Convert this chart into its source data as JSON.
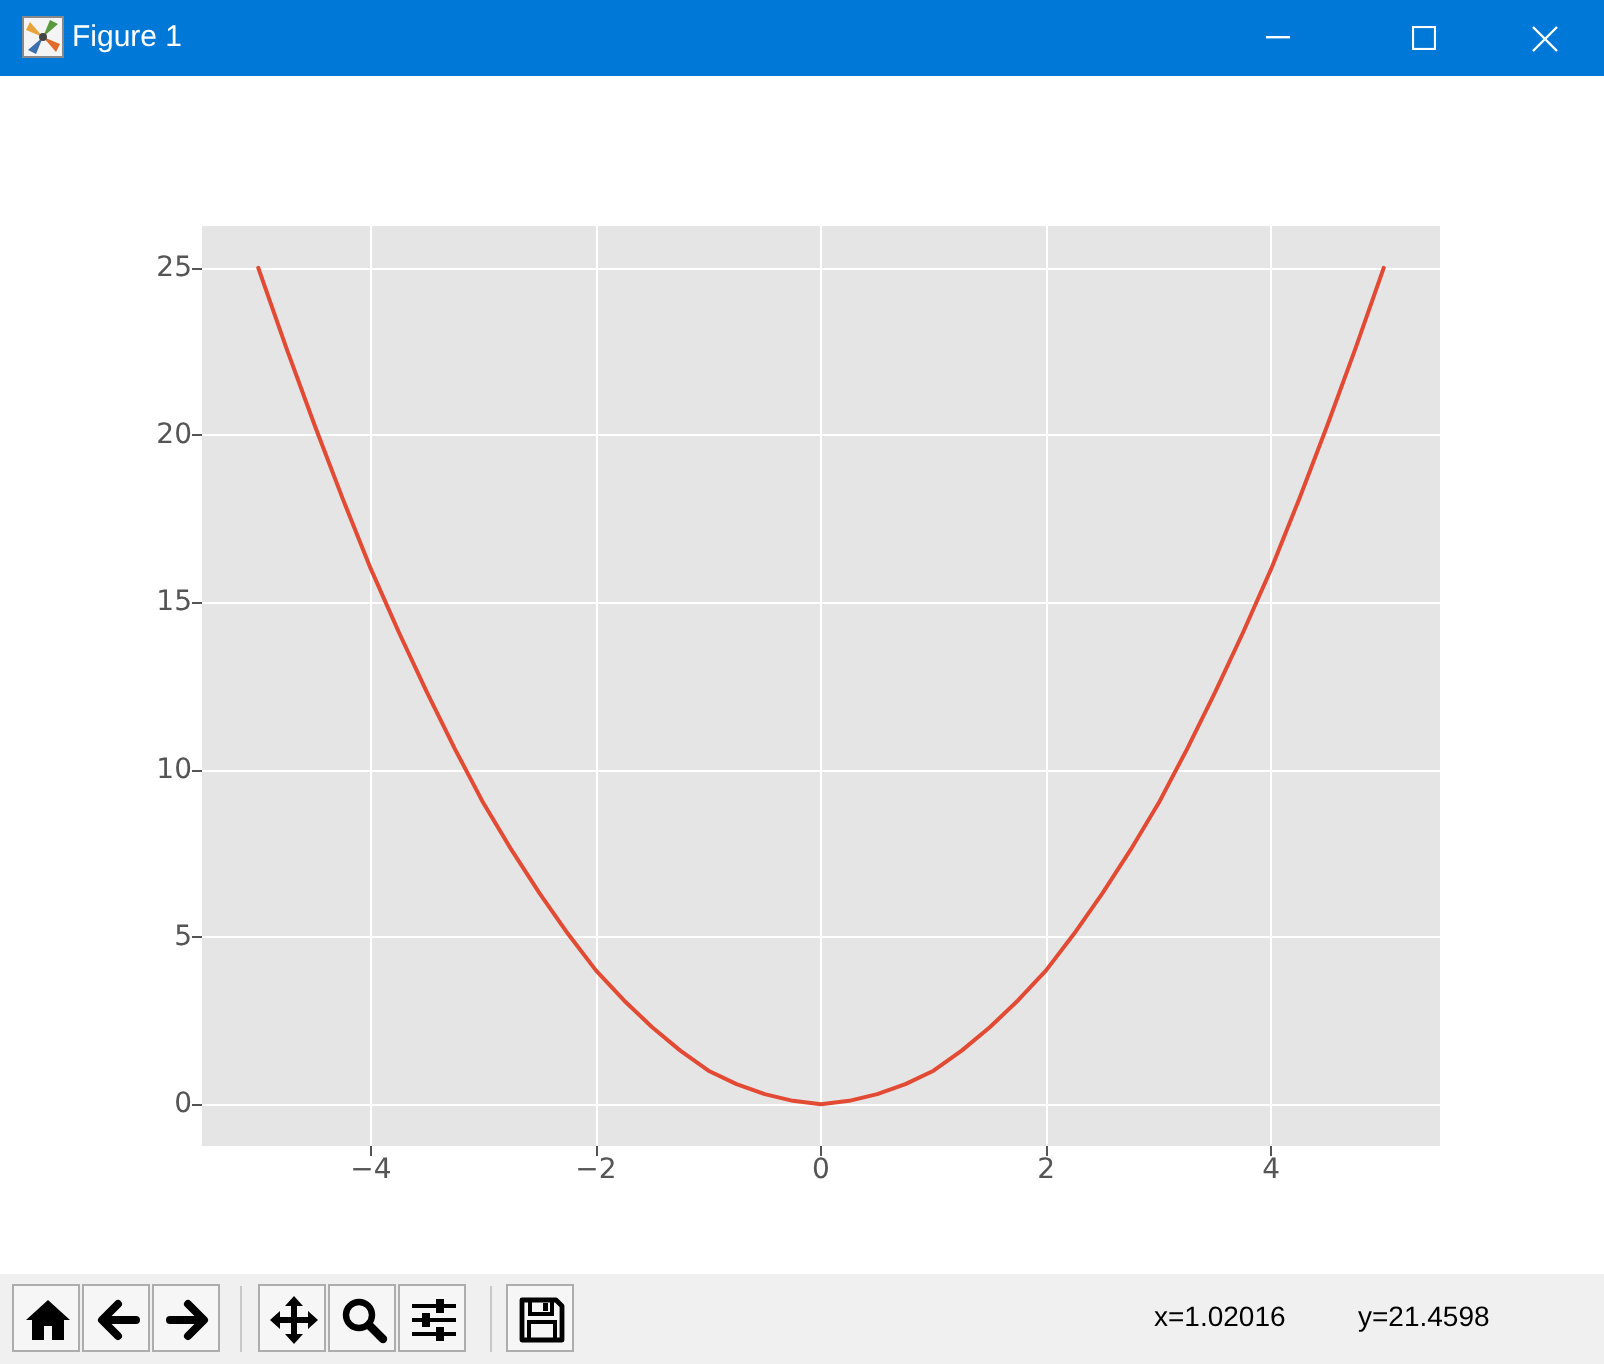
{
  "chart_data": {
    "type": "line",
    "title": "Figure 1",
    "x": [
      -5,
      -4.75,
      -4.5,
      -4.25,
      -4,
      -3.75,
      -3.5,
      -3.25,
      -3,
      -2.75,
      -2.5,
      -2.25,
      -2,
      -1.75,
      -1.5,
      -1.25,
      -1,
      -0.75,
      -0.5,
      -0.25,
      0,
      0.25,
      0.5,
      0.75,
      1,
      1.25,
      1.5,
      1.75,
      2,
      2.25,
      2.5,
      2.75,
      3,
      3.25,
      3.5,
      3.75,
      4,
      4.25,
      4.5,
      4.75,
      5
    ],
    "series": [
      {
        "color": "#e24a33",
        "values": [
          25,
          22.6,
          20.3,
          18.1,
          16,
          14.1,
          12.3,
          10.6,
          9,
          7.6,
          6.3,
          5.1,
          4,
          3.1,
          2.3,
          1.6,
          1,
          0.6,
          0.3,
          0.1,
          0,
          0.1,
          0.3,
          0.6,
          1,
          1.6,
          2.3,
          3.1,
          4,
          5.1,
          6.3,
          7.6,
          9,
          10.6,
          12.3,
          14.1,
          16,
          18.1,
          20.3,
          22.6,
          25
        ]
      }
    ],
    "xlim": [
      -5.5,
      5.5
    ],
    "ylim": [
      -1.25,
      26.25
    ],
    "xticks": [
      {
        "value": -4,
        "label": "−4"
      },
      {
        "value": -2,
        "label": "−2"
      },
      0,
      2,
      4
    ],
    "yticks": [
      0,
      5,
      10,
      15,
      20,
      25
    ],
    "grid": true,
    "marker": "none",
    "line_style": "solid",
    "annotations": [
      "x=1.02016",
      "y=21.4598"
    ]
  }
}
